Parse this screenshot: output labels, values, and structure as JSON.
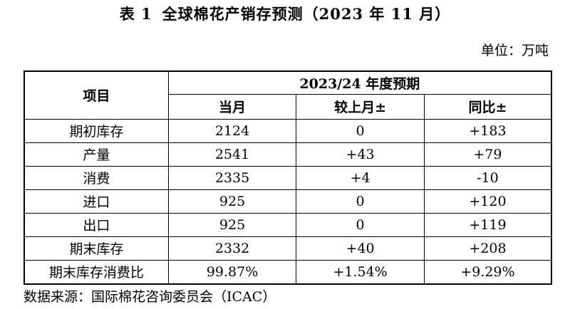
{
  "title": {
    "number": "表 1",
    "text": "全球棉花产销存预测（2023 年 11 月）"
  },
  "unit": "单位：万吨",
  "table": {
    "item_header": "项目",
    "period_header": "2023/24 年度预期",
    "columns": [
      "当月",
      "较上月±",
      "同比±"
    ],
    "rows": [
      {
        "item": "期初库存",
        "current": "2124",
        "mom": "0",
        "yoy": "+183"
      },
      {
        "item": "产量",
        "current": "2541",
        "mom": "+43",
        "yoy": "+79"
      },
      {
        "item": "消费",
        "current": "2335",
        "mom": "+4",
        "yoy": "-10"
      },
      {
        "item": "进口",
        "current": "925",
        "mom": "0",
        "yoy": "+120"
      },
      {
        "item": "出口",
        "current": "925",
        "mom": "0",
        "yoy": "+119"
      },
      {
        "item": "期末库存",
        "current": "2332",
        "mom": "+40",
        "yoy": "+208"
      },
      {
        "item": "期末库存消费比",
        "current": "99.87%",
        "mom": "+1.54%",
        "yoy": "+9.29%"
      }
    ]
  },
  "source": "数据来源：国际棉花咨询委员会（ICAC）"
}
